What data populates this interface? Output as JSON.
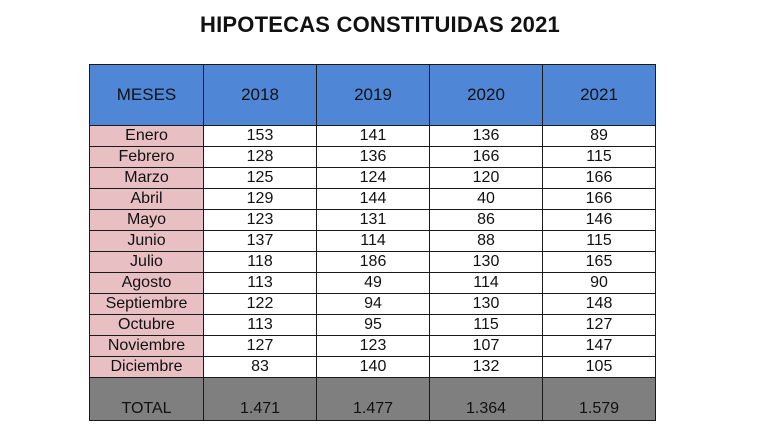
{
  "title": "HIPOTECAS CONSTITUIDAS 2021",
  "colors": {
    "header_bg": "#4f86d6",
    "month_bg": "#e8bfc3",
    "total_bg": "#7f7f7f"
  },
  "table": {
    "headers": [
      "MESES",
      "2018",
      "2019",
      "2020",
      "2021"
    ],
    "rows": [
      {
        "month": "Enero",
        "values": [
          "153",
          "141",
          "136",
          "89"
        ]
      },
      {
        "month": "Febrero",
        "values": [
          "128",
          "136",
          "166",
          "115"
        ]
      },
      {
        "month": "Marzo",
        "values": [
          "125",
          "124",
          "120",
          "166"
        ]
      },
      {
        "month": "Abril",
        "values": [
          "129",
          "144",
          "40",
          "166"
        ]
      },
      {
        "month": "Mayo",
        "values": [
          "123",
          "131",
          "86",
          "146"
        ]
      },
      {
        "month": "Junio",
        "values": [
          "137",
          "114",
          "88",
          "115"
        ]
      },
      {
        "month": "Julio",
        "values": [
          "118",
          "186",
          "130",
          "165"
        ]
      },
      {
        "month": "Agosto",
        "values": [
          "113",
          "49",
          "114",
          "90"
        ]
      },
      {
        "month": "Septiembre",
        "values": [
          "122",
          "94",
          "130",
          "148"
        ]
      },
      {
        "month": "Octubre",
        "values": [
          "113",
          "95",
          "115",
          "127"
        ]
      },
      {
        "month": "Noviembre",
        "values": [
          "127",
          "123",
          "107",
          "147"
        ]
      },
      {
        "month": "Diciembre",
        "values": [
          "83",
          "140",
          "132",
          "105"
        ]
      }
    ],
    "total": {
      "label": "TOTAL",
      "values": [
        "1.471",
        "1.477",
        "1.364",
        "1.579"
      ]
    }
  }
}
